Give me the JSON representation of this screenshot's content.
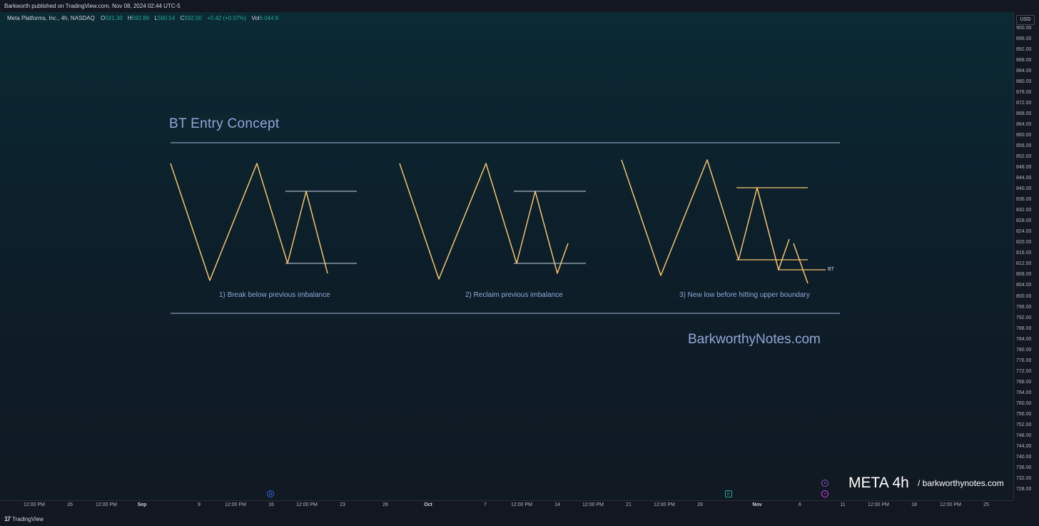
{
  "header": {
    "published_text": "Barkworth published on TradingView.com, Nov 08, 2024 02:44 UTC-5"
  },
  "legend": {
    "symbol": "Meta Platforms, Inc., 4h, NASDAQ",
    "open_label": "O",
    "open": "591.30",
    "high_label": "H",
    "high": "592.86",
    "low_label": "L",
    "low": "590.54",
    "close_label": "C",
    "close": "592.00",
    "change": "+0.42 (+0.07%)",
    "vol_label": "Vol",
    "vol": "6.044 K"
  },
  "drawing": {
    "title": "BT Entry Concept",
    "captions": [
      "1) Break below previous imbalance",
      "2) Reclaim previous imbalance",
      "3) New low before hitting upper boundary"
    ],
    "bt_label": "BT",
    "site": "BarkworthyNotes.com",
    "line_color": "#f5c26b",
    "border_color": "#9fb4d9"
  },
  "price_axis": {
    "currency": "USD",
    "ticks": [
      "900.00",
      "896.00",
      "892.00",
      "888.00",
      "884.00",
      "880.00",
      "876.00",
      "872.00",
      "868.00",
      "864.00",
      "860.00",
      "856.00",
      "852.00",
      "848.00",
      "844.00",
      "840.00",
      "836.00",
      "832.00",
      "828.00",
      "824.00",
      "820.00",
      "816.00",
      "812.00",
      "808.00",
      "804.00",
      "800.00",
      "796.00",
      "792.00",
      "788.00",
      "784.00",
      "780.00",
      "776.00",
      "772.00",
      "768.00",
      "764.00",
      "760.00",
      "756.00",
      "752.00",
      "748.00",
      "744.00",
      "740.00",
      "736.00",
      "732.00",
      "728.00"
    ]
  },
  "time_axis": {
    "ticks": [
      {
        "label": "12:00 PM",
        "bold": false
      },
      {
        "label": "26",
        "bold": false
      },
      {
        "label": "12:00 PM",
        "bold": false
      },
      {
        "label": "Sep",
        "bold": true
      },
      {
        "label": "9",
        "bold": false
      },
      {
        "label": "12:00 PM",
        "bold": false
      },
      {
        "label": "16",
        "bold": false
      },
      {
        "label": "12:00 PM",
        "bold": false
      },
      {
        "label": "23",
        "bold": false
      },
      {
        "label": "26",
        "bold": false
      },
      {
        "label": "Oct",
        "bold": true
      },
      {
        "label": "7",
        "bold": false
      },
      {
        "label": "12:00 PM",
        "bold": false
      },
      {
        "label": "14",
        "bold": false
      },
      {
        "label": "12:00 PM",
        "bold": false
      },
      {
        "label": "21",
        "bold": false
      },
      {
        "label": "12:00 PM",
        "bold": false
      },
      {
        "label": "28",
        "bold": false
      },
      {
        "label": "Nov",
        "bold": true
      },
      {
        "label": "6",
        "bold": false
      },
      {
        "label": "11",
        "bold": false
      },
      {
        "label": "12:00 PM",
        "bold": false
      },
      {
        "label": "18",
        "bold": false
      },
      {
        "label": "12:00 PM",
        "bold": false
      },
      {
        "label": "25",
        "bold": false
      }
    ]
  },
  "events": {
    "dividend": "D",
    "earnings": "E",
    "plus": "+",
    "split": "⚡"
  },
  "watermark": {
    "symbol": "META 4h",
    "site": "/ barkworthynotes.com"
  },
  "footer": {
    "brand": "TradingView",
    "logo_glyph": "17"
  }
}
